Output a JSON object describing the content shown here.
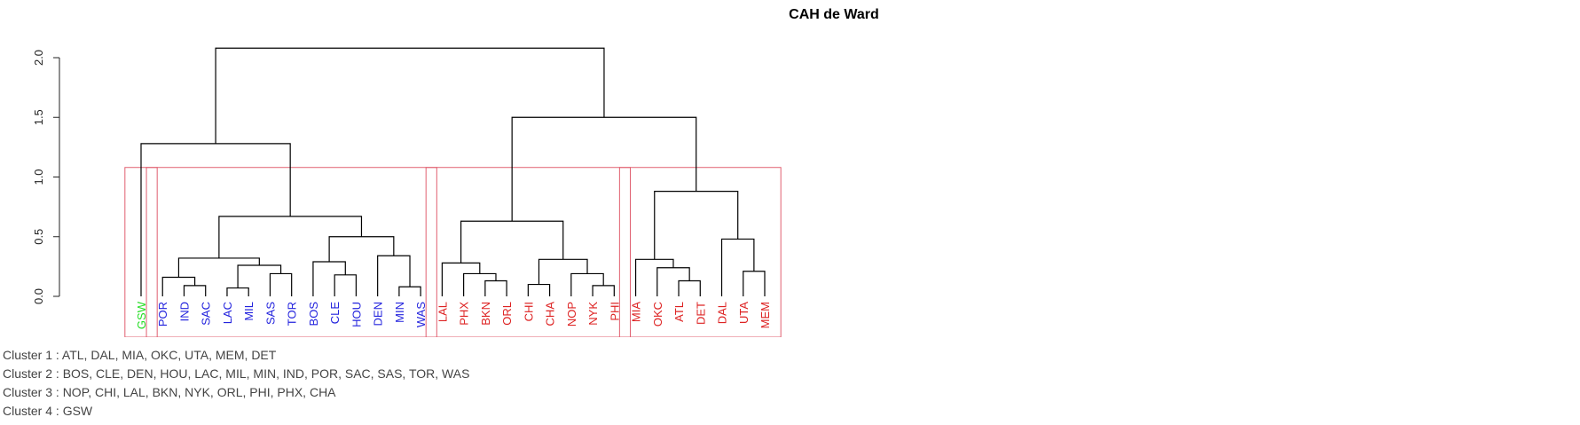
{
  "chart_data": {
    "type": "dendrogram",
    "title": "CAH de Ward",
    "xlabel": "",
    "ylabel": "",
    "ylim": [
      0,
      2.05
    ],
    "yticks": [
      "0.0",
      "0.5",
      "1.0",
      "1.5",
      "2.0"
    ],
    "ytick_values": [
      0,
      0.5,
      1.0,
      1.5,
      2.0
    ],
    "leaves": [
      {
        "label": "GSW",
        "cluster": 4
      },
      {
        "label": "POR",
        "cluster": 2
      },
      {
        "label": "IND",
        "cluster": 2
      },
      {
        "label": "SAC",
        "cluster": 2
      },
      {
        "label": "LAC",
        "cluster": 2
      },
      {
        "label": "MIL",
        "cluster": 2
      },
      {
        "label": "SAS",
        "cluster": 2
      },
      {
        "label": "TOR",
        "cluster": 2
      },
      {
        "label": "BOS",
        "cluster": 2
      },
      {
        "label": "CLE",
        "cluster": 2
      },
      {
        "label": "HOU",
        "cluster": 2
      },
      {
        "label": "DEN",
        "cluster": 2
      },
      {
        "label": "MIN",
        "cluster": 2
      },
      {
        "label": "WAS",
        "cluster": 2
      },
      {
        "label": "LAL",
        "cluster": 3
      },
      {
        "label": "PHX",
        "cluster": 3
      },
      {
        "label": "BKN",
        "cluster": 3
      },
      {
        "label": "ORL",
        "cluster": 3
      },
      {
        "label": "CHI",
        "cluster": 3
      },
      {
        "label": "CHA",
        "cluster": 3
      },
      {
        "label": "NOP",
        "cluster": 3
      },
      {
        "label": "NYK",
        "cluster": 3
      },
      {
        "label": "PHI",
        "cluster": 3
      },
      {
        "label": "MIA",
        "cluster": 1
      },
      {
        "label": "OKC",
        "cluster": 1
      },
      {
        "label": "ATL",
        "cluster": 1
      },
      {
        "label": "DET",
        "cluster": 1
      },
      {
        "label": "DAL",
        "cluster": 1
      },
      {
        "label": "UTA",
        "cluster": 1
      },
      {
        "label": "MEM",
        "cluster": 1
      }
    ],
    "merges": [
      {
        "left": "IND",
        "right": "SAC",
        "height": 0.09
      },
      {
        "left": "POR",
        "right": "m1",
        "height": 0.16
      },
      {
        "left": "LAC",
        "right": "MIL",
        "height": 0.07
      },
      {
        "left": "SAS",
        "right": "TOR",
        "height": 0.19
      },
      {
        "left": "m3",
        "right": "m4",
        "height": 0.26
      },
      {
        "left": "m2",
        "right": "m5",
        "height": 0.32
      },
      {
        "left": "CLE",
        "right": "HOU",
        "height": 0.18
      },
      {
        "left": "BOS",
        "right": "m7",
        "height": 0.29
      },
      {
        "left": "MIN",
        "right": "WAS",
        "height": 0.08
      },
      {
        "left": "DEN",
        "right": "m9",
        "height": 0.34
      },
      {
        "left": "m8",
        "right": "m10",
        "height": 0.5
      },
      {
        "left": "m6",
        "right": "m11",
        "height": 0.67
      },
      {
        "left": "GSW",
        "right": "m12",
        "height": 1.28
      },
      {
        "left": "BKN",
        "right": "ORL",
        "height": 0.13
      },
      {
        "left": "PHX",
        "right": "m14",
        "height": 0.19
      },
      {
        "left": "LAL",
        "right": "m15",
        "height": 0.28
      },
      {
        "left": "CHI",
        "right": "CHA",
        "height": 0.1
      },
      {
        "left": "NYK",
        "right": "PHI",
        "height": 0.09
      },
      {
        "left": "NOP",
        "right": "m18",
        "height": 0.19
      },
      {
        "left": "m17",
        "right": "m19",
        "height": 0.31
      },
      {
        "left": "m16",
        "right": "m20",
        "height": 0.63
      },
      {
        "left": "ATL",
        "right": "DET",
        "height": 0.13
      },
      {
        "left": "OKC",
        "right": "m22",
        "height": 0.24
      },
      {
        "left": "MIA",
        "right": "m23",
        "height": 0.31
      },
      {
        "left": "UTA",
        "right": "MEM",
        "height": 0.21
      },
      {
        "left": "DAL",
        "right": "m25",
        "height": 0.48
      },
      {
        "left": "m24",
        "right": "m26",
        "height": 0.88
      },
      {
        "left": "m21",
        "right": "m27",
        "height": 1.5
      },
      {
        "left": "m13",
        "right": "m28",
        "height": 2.08
      }
    ],
    "clusters": [
      {
        "id": 4,
        "color": "#22dd22",
        "box_height": 1.08
      },
      {
        "id": 2,
        "color": "#2222dd",
        "box_height": 1.08
      },
      {
        "id": 3,
        "color": "#dd2222",
        "box_height": 1.08
      },
      {
        "id": 1,
        "color": "#dd2222",
        "box_height": 1.08
      }
    ],
    "box_color": "#e06070",
    "grid": false
  },
  "legend": {
    "lines": [
      "Cluster 1 : ATL, DAL, MIA, OKC, UTA, MEM, DET",
      "Cluster 2 : BOS, CLE, DEN, HOU, LAC, MIL, MIN, IND, POR, SAC, SAS, TOR, WAS",
      "Cluster 3 : NOP, CHI, LAL, BKN, NYK, ORL, PHI, PHX, CHA",
      "Cluster 4 : GSW"
    ]
  }
}
